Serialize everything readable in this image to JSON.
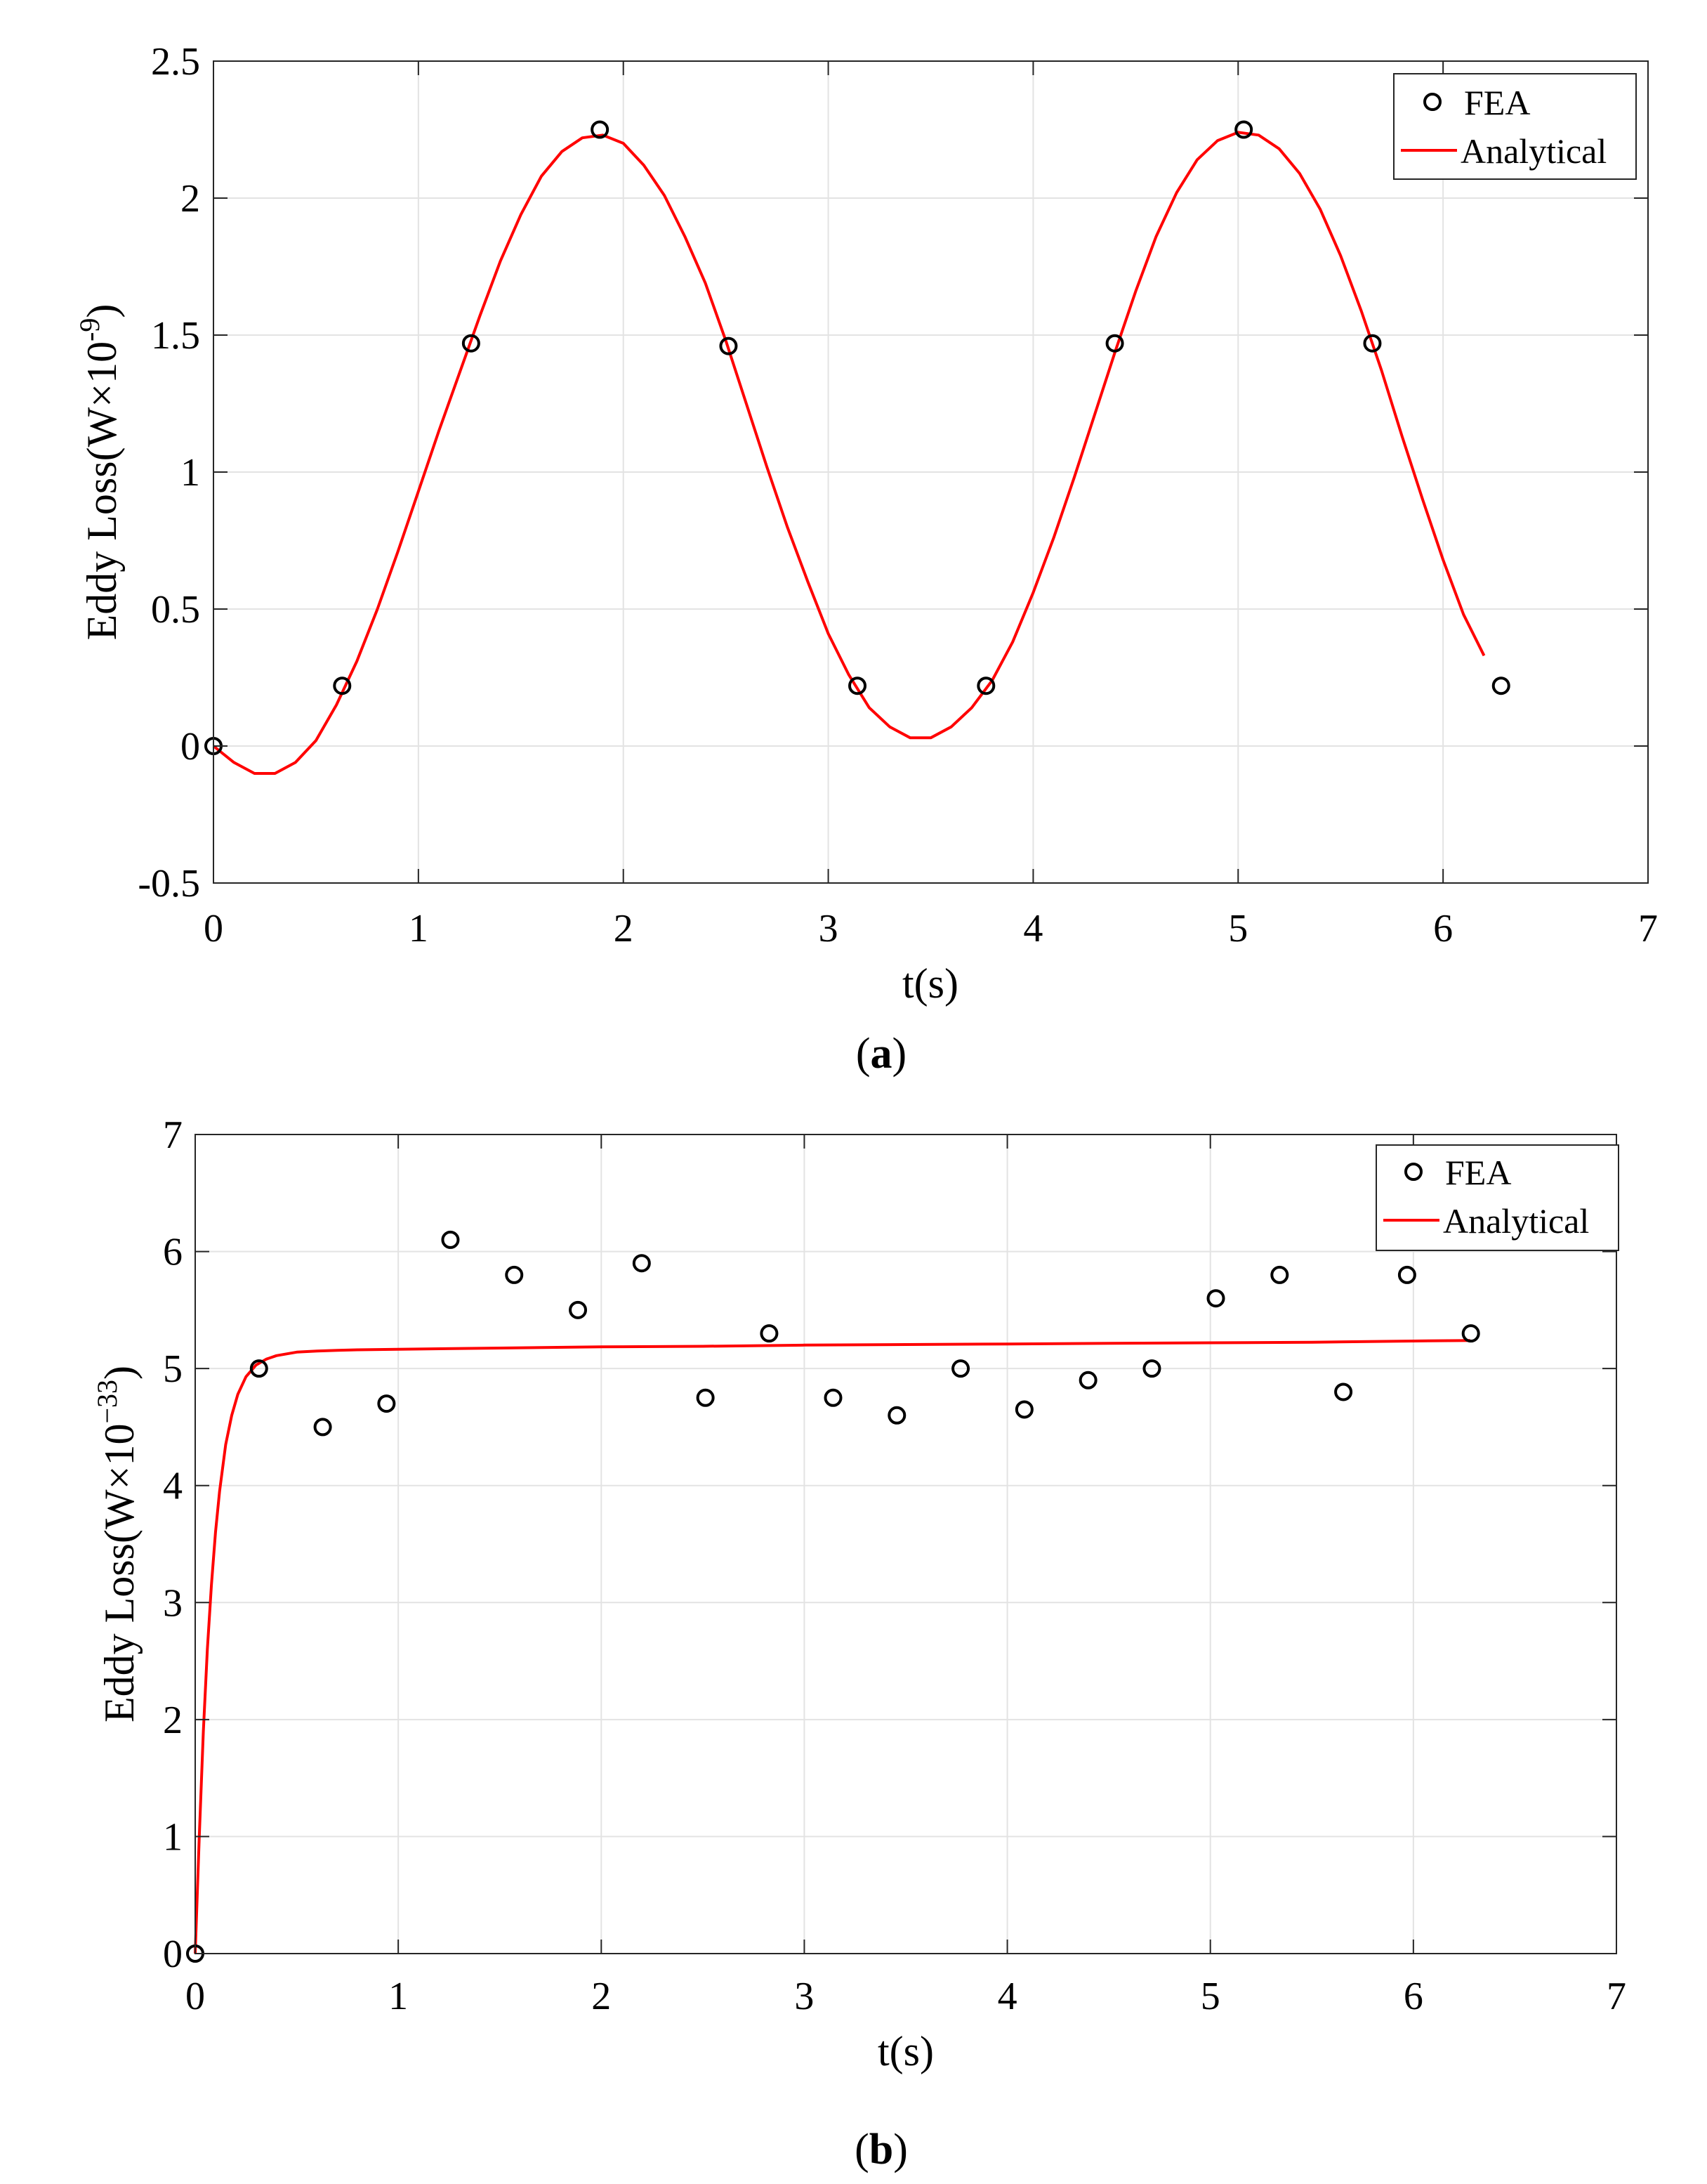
{
  "colors": {
    "fea_marker": "#000000",
    "analytical_line": "#ff0000",
    "grid": "#e3e3e3",
    "axes": "#262626"
  },
  "chart_data": [
    {
      "type": "line",
      "panel_label": "a",
      "xlabel": "t(s)",
      "ylabel": {
        "main": "Eddy Loss(W×10",
        "exponent": "-9",
        "close": ")"
      },
      "xlim": [
        0,
        7
      ],
      "ylim": [
        -0.5,
        2.5
      ],
      "xticks": [
        0,
        1,
        2,
        3,
        4,
        5,
        6,
        7
      ],
      "yticks": [
        -0.5,
        0,
        0.5,
        1,
        1.5,
        2,
        2.5
      ],
      "xtick_labels": [
        "0",
        "1",
        "2",
        "3",
        "4",
        "5",
        "6",
        "7"
      ],
      "ytick_labels": [
        "-0.5",
        "0",
        "0.5",
        "1",
        "1.5",
        "2",
        "2.5"
      ],
      "grid": true,
      "legend": {
        "position": "top-right",
        "entries": [
          "FEA",
          "Analytical"
        ]
      },
      "series": [
        {
          "name": "FEA",
          "style": "markers",
          "x": [
            0,
            0.628,
            1.257,
            1.885,
            2.513,
            3.142,
            3.77,
            4.398,
            5.027,
            5.655,
            6.283
          ],
          "y": [
            0,
            0.22,
            1.47,
            2.25,
            1.46,
            0.22,
            0.22,
            1.47,
            2.25,
            1.47,
            0.22
          ]
        },
        {
          "name": "Analytical",
          "style": "line",
          "x": [
            0,
            0.1,
            0.2,
            0.3,
            0.4,
            0.5,
            0.6,
            0.7,
            0.8,
            0.9,
            1.0,
            1.1,
            1.2,
            1.3,
            1.4,
            1.5,
            1.6,
            1.7,
            1.8,
            1.9,
            2.0,
            2.1,
            2.2,
            2.3,
            2.4,
            2.5,
            2.6,
            2.7,
            2.8,
            2.9,
            3.0,
            3.1,
            3.2,
            3.3,
            3.4,
            3.5,
            3.6,
            3.7,
            3.8,
            3.9,
            4.0,
            4.1,
            4.2,
            4.3,
            4.4,
            4.5,
            4.6,
            4.7,
            4.8,
            4.9,
            5.0,
            5.1,
            5.2,
            5.3,
            5.4,
            5.5,
            5.6,
            5.7,
            5.8,
            5.9,
            6.0,
            6.1,
            6.2
          ],
          "y": [
            0,
            -0.06,
            -0.1,
            -0.1,
            -0.06,
            0.02,
            0.15,
            0.31,
            0.5,
            0.71,
            0.93,
            1.15,
            1.36,
            1.57,
            1.77,
            1.94,
            2.08,
            2.17,
            2.22,
            2.23,
            2.2,
            2.12,
            2.01,
            1.86,
            1.69,
            1.48,
            1.25,
            1.02,
            0.8,
            0.6,
            0.41,
            0.26,
            0.14,
            0.07,
            0.03,
            0.03,
            0.07,
            0.14,
            0.24,
            0.38,
            0.56,
            0.76,
            0.98,
            1.21,
            1.44,
            1.66,
            1.86,
            2.02,
            2.14,
            2.21,
            2.24,
            2.23,
            2.18,
            2.09,
            1.96,
            1.79,
            1.59,
            1.37,
            1.13,
            0.9,
            0.68,
            0.48,
            0.33
          ]
        }
      ]
    },
    {
      "type": "line",
      "panel_label": "b",
      "xlabel": "t(s)",
      "ylabel": {
        "main": "Eddy Loss(W×10",
        "exponent": "−33",
        "close": ")"
      },
      "xlim": [
        0,
        7
      ],
      "ylim": [
        0,
        7
      ],
      "xticks": [
        0,
        1,
        2,
        3,
        4,
        5,
        6,
        7
      ],
      "yticks": [
        0,
        1,
        2,
        3,
        4,
        5,
        6,
        7
      ],
      "xtick_labels": [
        "0",
        "1",
        "2",
        "3",
        "4",
        "5",
        "6",
        "7"
      ],
      "ytick_labels": [
        "0",
        "1",
        "2",
        "3",
        "4",
        "5",
        "6",
        "7"
      ],
      "grid": true,
      "legend": {
        "position": "top-right",
        "entries": [
          "FEA",
          "Analytical"
        ]
      },
      "series": [
        {
          "name": "FEA",
          "style": "markers",
          "x": [
            0,
            0.314,
            0.628,
            0.942,
            1.257,
            1.571,
            1.885,
            2.199,
            2.513,
            2.827,
            3.142,
            3.456,
            3.77,
            4.084,
            4.398,
            4.712,
            5.027,
            5.341,
            5.655,
            5.969,
            6.283
          ],
          "y": [
            0,
            5.0,
            4.5,
            4.7,
            6.1,
            5.8,
            5.5,
            5.9,
            4.75,
            5.3,
            4.75,
            4.6,
            5.0,
            4.65,
            4.9,
            5.0,
            5.6,
            5.8,
            4.8,
            5.8,
            5.3
          ]
        },
        {
          "name": "Analytical",
          "style": "line",
          "x": [
            0,
            0.02,
            0.04,
            0.06,
            0.08,
            0.1,
            0.12,
            0.15,
            0.18,
            0.21,
            0.25,
            0.3,
            0.35,
            0.4,
            0.5,
            0.6,
            0.7,
            0.8,
            1.0,
            1.5,
            2.0,
            2.5,
            3.0,
            3.5,
            4.0,
            4.5,
            5.0,
            5.5,
            6.0,
            6.28
          ],
          "y": [
            0,
            1.0,
            1.9,
            2.6,
            3.15,
            3.6,
            3.95,
            4.35,
            4.6,
            4.78,
            4.93,
            5.03,
            5.08,
            5.11,
            5.14,
            5.15,
            5.155,
            5.16,
            5.165,
            5.175,
            5.185,
            5.19,
            5.2,
            5.205,
            5.21,
            5.215,
            5.22,
            5.225,
            5.235,
            5.24
          ]
        }
      ]
    }
  ]
}
